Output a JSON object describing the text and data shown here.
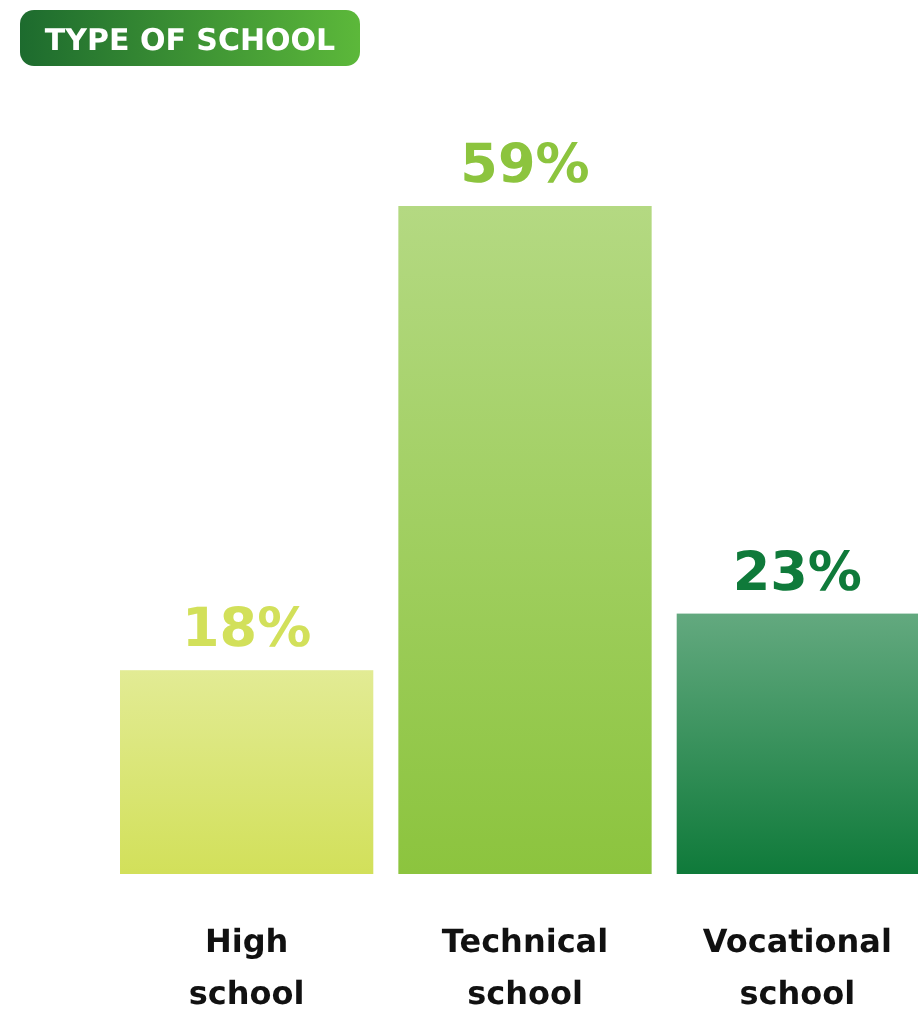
{
  "chart_data": {
    "type": "bar",
    "title": "TYPE OF SCHOOL",
    "categories": [
      "High school",
      "Technical school",
      "Vocational school"
    ],
    "values": [
      18,
      59,
      23
    ],
    "value_labels": [
      "18%",
      "59%",
      "23%"
    ],
    "colors": [
      "#d2e05a",
      "#8cc43e",
      "#0f7a3a"
    ]
  }
}
